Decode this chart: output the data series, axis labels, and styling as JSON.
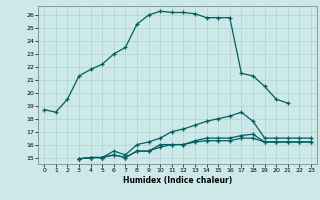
{
  "xlabel": "Humidex (Indice chaleur)",
  "bg_color": "#cce8e8",
  "grid_color": "#b0d0d0",
  "line_color": "#006060",
  "xlim": [
    -0.5,
    23.5
  ],
  "ylim": [
    14.5,
    26.7
  ],
  "xticks": [
    0,
    1,
    2,
    3,
    4,
    5,
    6,
    7,
    8,
    9,
    10,
    11,
    12,
    13,
    14,
    15,
    16,
    17,
    18,
    19,
    20,
    21,
    22,
    23
  ],
  "yticks": [
    15,
    16,
    17,
    18,
    19,
    20,
    21,
    22,
    23,
    24,
    25,
    26
  ],
  "line1_x": [
    0,
    1,
    2,
    3,
    4,
    5,
    6,
    7,
    8,
    9,
    10,
    11,
    12,
    13,
    14,
    15,
    16,
    17,
    18,
    19,
    20,
    21
  ],
  "line1_y": [
    18.7,
    18.5,
    19.5,
    21.3,
    21.8,
    22.2,
    23.0,
    23.5,
    25.3,
    26.0,
    26.3,
    26.2,
    26.2,
    26.1,
    25.8,
    25.8,
    25.8,
    21.5,
    21.3,
    20.5,
    19.5,
    19.2
  ],
  "line2_x": [
    3,
    4,
    5,
    6,
    7,
    8,
    9,
    10,
    11,
    12,
    13,
    14,
    15,
    16,
    17,
    18,
    19,
    20,
    21,
    22,
    23
  ],
  "line2_y": [
    14.9,
    15.0,
    15.0,
    15.5,
    15.2,
    16.0,
    16.2,
    16.5,
    17.0,
    17.2,
    17.5,
    17.8,
    18.0,
    18.2,
    18.5,
    17.8,
    16.5,
    16.5,
    16.5,
    16.5,
    16.5
  ],
  "line3_x": [
    3,
    4,
    5,
    6,
    7,
    8,
    9,
    10,
    11,
    12,
    13,
    14,
    15,
    16,
    17,
    18,
    19,
    20,
    21,
    22,
    23
  ],
  "line3_y": [
    14.9,
    15.0,
    15.0,
    15.2,
    15.0,
    15.5,
    15.5,
    16.0,
    16.0,
    16.0,
    16.3,
    16.5,
    16.5,
    16.5,
    16.7,
    16.8,
    16.2,
    16.2,
    16.2,
    16.2,
    16.2
  ],
  "line4_x": [
    3,
    4,
    5,
    6,
    7,
    8,
    9,
    10,
    11,
    12,
    13,
    14,
    15,
    16,
    17,
    18,
    19,
    20,
    21,
    22,
    23
  ],
  "line4_y": [
    14.9,
    15.0,
    15.0,
    15.2,
    15.0,
    15.5,
    15.5,
    15.8,
    16.0,
    16.0,
    16.2,
    16.3,
    16.3,
    16.3,
    16.5,
    16.5,
    16.2,
    16.2,
    16.2,
    16.2,
    16.2
  ]
}
